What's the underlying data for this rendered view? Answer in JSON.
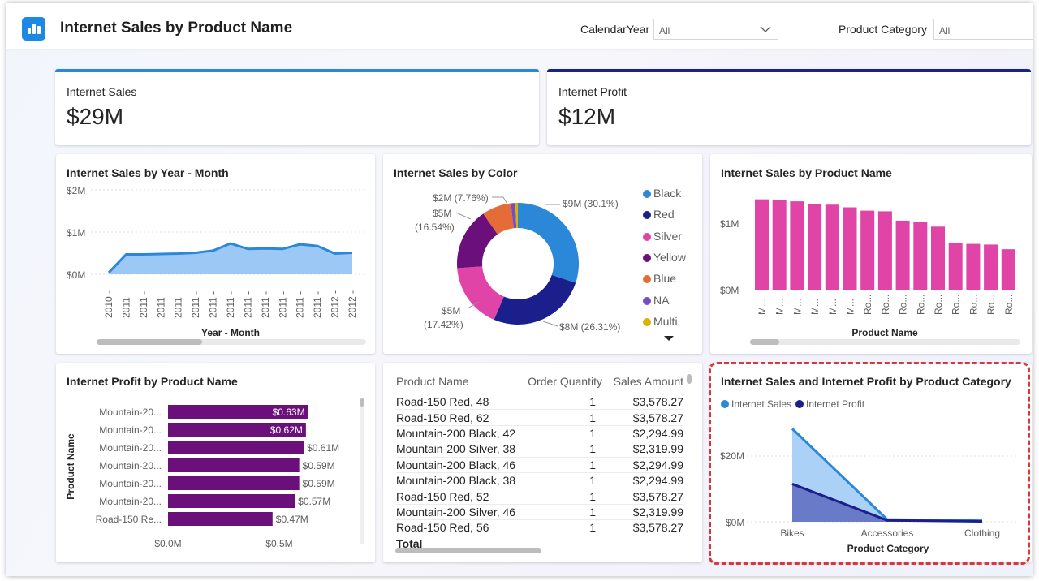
{
  "header": {
    "title": "Internet Sales by Product Name",
    "filters": [
      {
        "label": "CalendarYear",
        "value": "All"
      },
      {
        "label": "Product Category",
        "value": "All"
      }
    ]
  },
  "kpis": [
    {
      "label": "Internet Sales",
      "value": "$29M",
      "accent": "#2b88d8"
    },
    {
      "label": "Internet Profit",
      "value": "$12M",
      "accent": "#1a237e"
    }
  ],
  "colors": {
    "light_blue": "#2b88d8",
    "area_blue": "#9cc8f5",
    "navy": "#1a1f8c",
    "magenta": "#e044a7",
    "purple": "#6b0f7a",
    "highlight_red": "#d9363e"
  },
  "charts": {
    "sales_by_month": {
      "title": "Internet Sales by Year - Month",
      "xlabel": "Year - Month",
      "y_ticks": [
        "$2M",
        "$1M",
        "$0M"
      ]
    },
    "sales_by_color": {
      "title": "Internet Sales by Color",
      "labels": [
        {
          "text": "$9M (30.1%)"
        },
        {
          "text": "$8M (26.31%)"
        },
        {
          "text": "$5M",
          "text2": "(17.42%)"
        },
        {
          "text": "$5M",
          "text2": "(16.54%)"
        },
        {
          "text": "$2M (7.76%)"
        }
      ],
      "legend": [
        {
          "name": "Black",
          "color": "#2b88d8"
        },
        {
          "name": "Red",
          "color": "#1a1f8c"
        },
        {
          "name": "Silver",
          "color": "#e044a7"
        },
        {
          "name": "Yellow",
          "color": "#6b0f7a"
        },
        {
          "name": "Blue",
          "color": "#e66c37"
        },
        {
          "name": "NA",
          "color": "#744ec2"
        },
        {
          "name": "Multi",
          "color": "#d9b300"
        }
      ]
    },
    "sales_by_product": {
      "title": "Internet Sales by Product Name",
      "xlabel": "Product Name",
      "y_ticks": [
        "$1M",
        "$0M"
      ]
    },
    "profit_by_product": {
      "title": "Internet Profit by Product Name",
      "ylabel": "Product Name",
      "x_ticks": [
        "$0.0M",
        "$0.5M"
      ]
    },
    "sales_profit_by_category": {
      "title": "Internet Sales and Internet Profit by Product Category",
      "xlabel": "Product Category",
      "y_ticks": [
        "$20M",
        "$0M"
      ],
      "legend": [
        "Internet Sales",
        "Internet Profit"
      ]
    }
  },
  "table": {
    "columns": [
      "Product Name",
      "Order Quantity",
      "Sales Amount"
    ],
    "rows": [
      [
        "Road-150 Red, 48",
        "1",
        "$3,578.27"
      ],
      [
        "Road-150 Red, 62",
        "1",
        "$3,578.27"
      ],
      [
        "Mountain-200 Black, 42",
        "1",
        "$2,294.99"
      ],
      [
        "Mountain-200 Silver, 38",
        "1",
        "$2,319.99"
      ],
      [
        "Mountain-200 Black, 46",
        "1",
        "$2,294.99"
      ],
      [
        "Mountain-200 Black, 38",
        "1",
        "$2,294.99"
      ],
      [
        "Road-150 Red, 52",
        "1",
        "$3,578.27"
      ],
      [
        "Mountain-200 Silver, 46",
        "1",
        "$2,319.99"
      ],
      [
        "Road-150 Red, 56",
        "1",
        "$3,578.27"
      ]
    ],
    "total_label": "Total"
  },
  "chart_data": [
    {
      "type": "area",
      "title": "Internet Sales by Year - Month",
      "xlabel": "Year - Month",
      "x": [
        "2010",
        "2011",
        "2011",
        "2011",
        "2011",
        "2011",
        "2011",
        "2011",
        "2011",
        "2011",
        "2011",
        "2011",
        "2011",
        "2012",
        "2012"
      ],
      "values": [
        0.04,
        0.47,
        0.47,
        0.48,
        0.49,
        0.51,
        0.56,
        0.73,
        0.6,
        0.61,
        0.6,
        0.71,
        0.67,
        0.49,
        0.51
      ],
      "ylim": [
        0,
        2
      ],
      "unit": "$M",
      "color": "#9cc8f5"
    },
    {
      "type": "pie",
      "title": "Internet Sales by Color",
      "labels": [
        "Black",
        "Red",
        "Silver",
        "Yellow",
        "Blue",
        "NA",
        "Multi"
      ],
      "values": [
        30.1,
        26.31,
        17.42,
        16.54,
        7.76,
        1.2,
        0.67
      ],
      "colors": [
        "#2b88d8",
        "#1a1f8c",
        "#e044a7",
        "#6b0f7a",
        "#e66c37",
        "#744ec2",
        "#d9b300"
      ]
    },
    {
      "type": "bar",
      "title": "Internet Sales by Product Name",
      "xlabel": "Product Name",
      "categories": [
        "M...",
        "M...",
        "M...",
        "M...",
        "M...",
        "M...",
        "Ro...",
        "Ro...",
        "Ro...",
        "Ro...",
        "Ro...",
        "Ro...",
        "Ro...",
        "Ro...",
        "Ro..."
      ],
      "values": [
        1.37,
        1.36,
        1.34,
        1.3,
        1.29,
        1.25,
        1.2,
        1.19,
        1.05,
        1.03,
        0.96,
        0.72,
        0.7,
        0.69,
        0.62
      ],
      "ylim": [
        0,
        1.5
      ],
      "unit": "$M",
      "color": "#e044a7"
    },
    {
      "type": "bar",
      "title": "Internet Profit by Product Name",
      "ylabel": "Product Name",
      "orientation": "horizontal",
      "categories": [
        "Mountain-20...",
        "Mountain-20...",
        "Mountain-20...",
        "Mountain-20...",
        "Mountain-20...",
        "Mountain-20...",
        "Road-150 Re..."
      ],
      "values": [
        0.63,
        0.62,
        0.61,
        0.59,
        0.59,
        0.57,
        0.47
      ],
      "value_labels": [
        "$0.63M",
        "$0.62M",
        "$0.61M",
        "$0.59M",
        "$0.59M",
        "$0.57M",
        "$0.47M"
      ],
      "xlim": [
        0,
        0.8
      ],
      "unit": "$M",
      "color": "#6b0f7a"
    },
    {
      "type": "area",
      "title": "Internet Sales and Internet Profit by Product Category",
      "xlabel": "Product Category",
      "categories": [
        "Bikes",
        "Accessories",
        "Clothing"
      ],
      "series": [
        {
          "name": "Internet Sales",
          "values": [
            28.3,
            0.7,
            0.34
          ],
          "color": "#2b88d8"
        },
        {
          "name": "Internet Profit",
          "values": [
            11.5,
            0.44,
            0.13
          ],
          "color": "#1a1f8c"
        }
      ],
      "ylim": [
        0,
        30
      ],
      "unit": "$M"
    }
  ]
}
